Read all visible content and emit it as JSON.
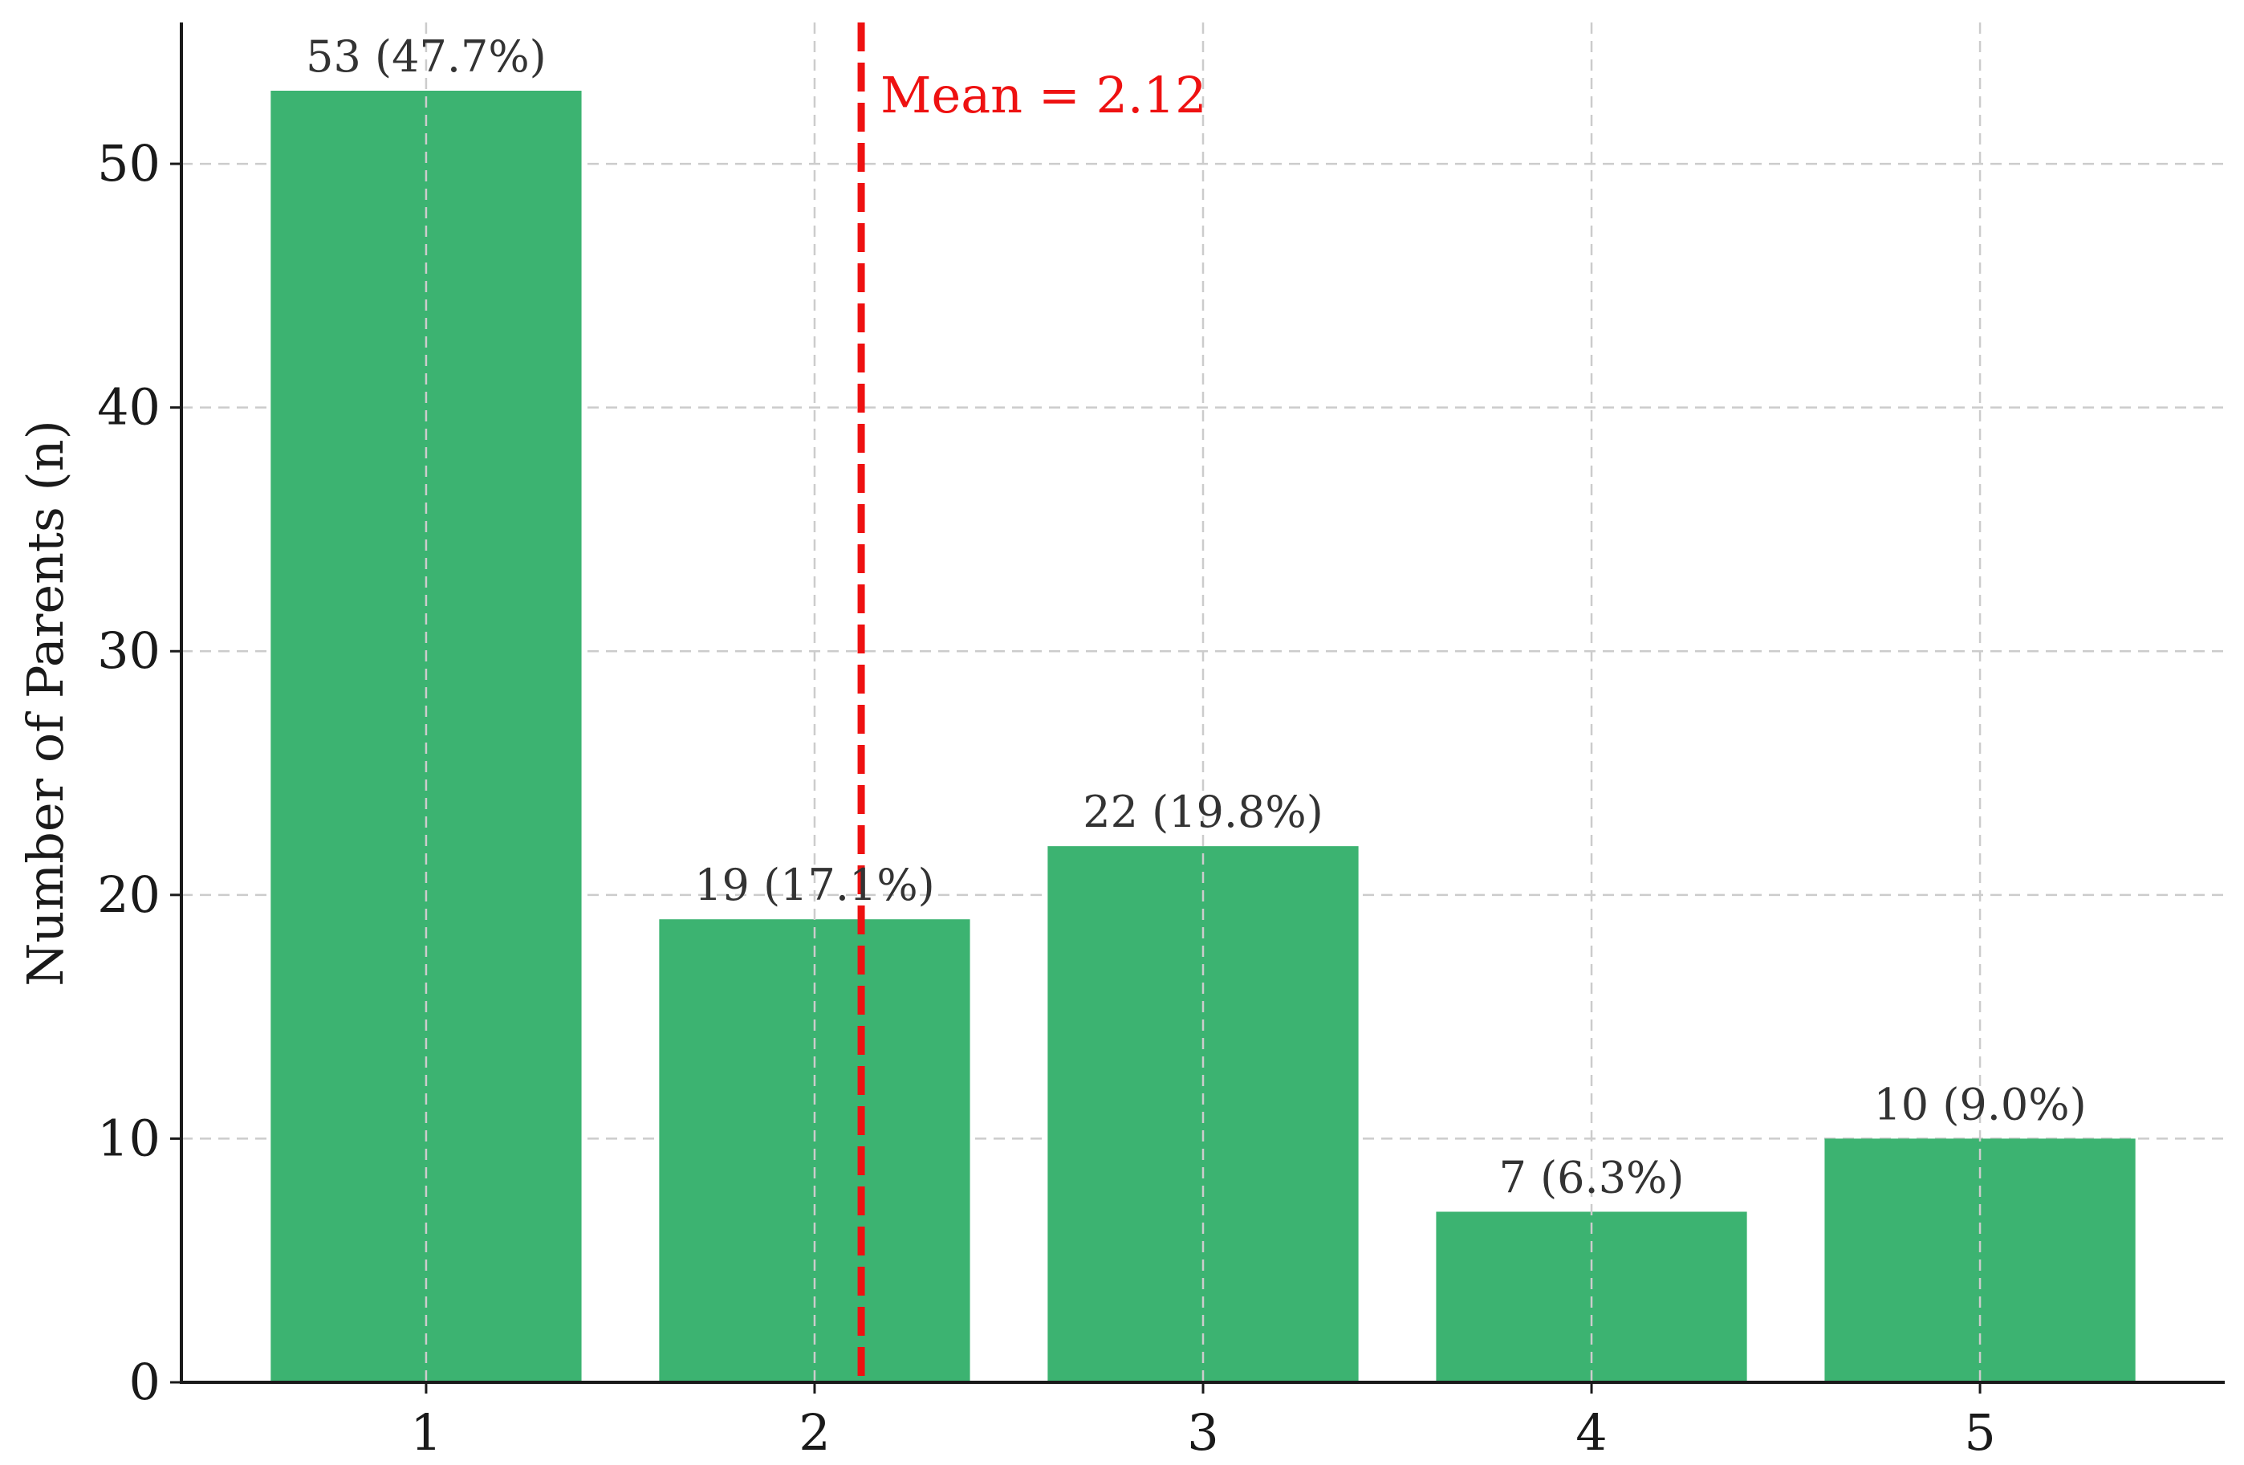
{
  "chart_data": {
    "type": "bar",
    "categories": [
      "1",
      "2",
      "3",
      "4",
      "5"
    ],
    "values": [
      53,
      19,
      22,
      7,
      10
    ],
    "data_labels": [
      "53 (47.7%)",
      "19 (17.1%)",
      "22 (19.8%)",
      "7 (6.3%)",
      "10 (9.0%)"
    ],
    "title": "",
    "xlabel": "",
    "ylabel": "Number of Parents (n)",
    "ylim": [
      0,
      55.8
    ],
    "xlim": [
      0.37,
      5.63
    ],
    "yticks": [
      0,
      10,
      20,
      30,
      40,
      50
    ],
    "grid": true,
    "bar_color": "#3cb371",
    "mean": {
      "value": 2.12,
      "label": "Mean = 2.12",
      "color": "#ee1111"
    }
  }
}
